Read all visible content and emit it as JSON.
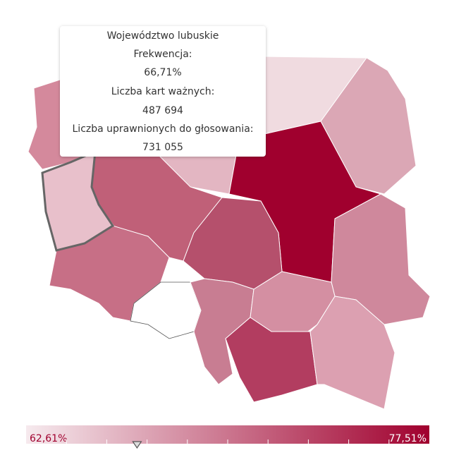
{
  "tooltip": {
    "region": "Województwo lubuskie",
    "rows": [
      {
        "label": "Frekwencja:",
        "value": {
          "value": 66.71,
          "label": "66,71%"
        }
      },
      {
        "label": "Liczba kart ważnych:",
        "value": {
          "value": 487694,
          "label": "487 694"
        }
      },
      {
        "label": "Liczba uprawnionych do głosowania:",
        "value": {
          "value": 731055,
          "label": "731 055"
        }
      }
    ]
  },
  "legend": {
    "min": {
      "value": 62.61,
      "label": "62,61%"
    },
    "max": {
      "value": 77.51,
      "label": "77,51%"
    }
  }
}
